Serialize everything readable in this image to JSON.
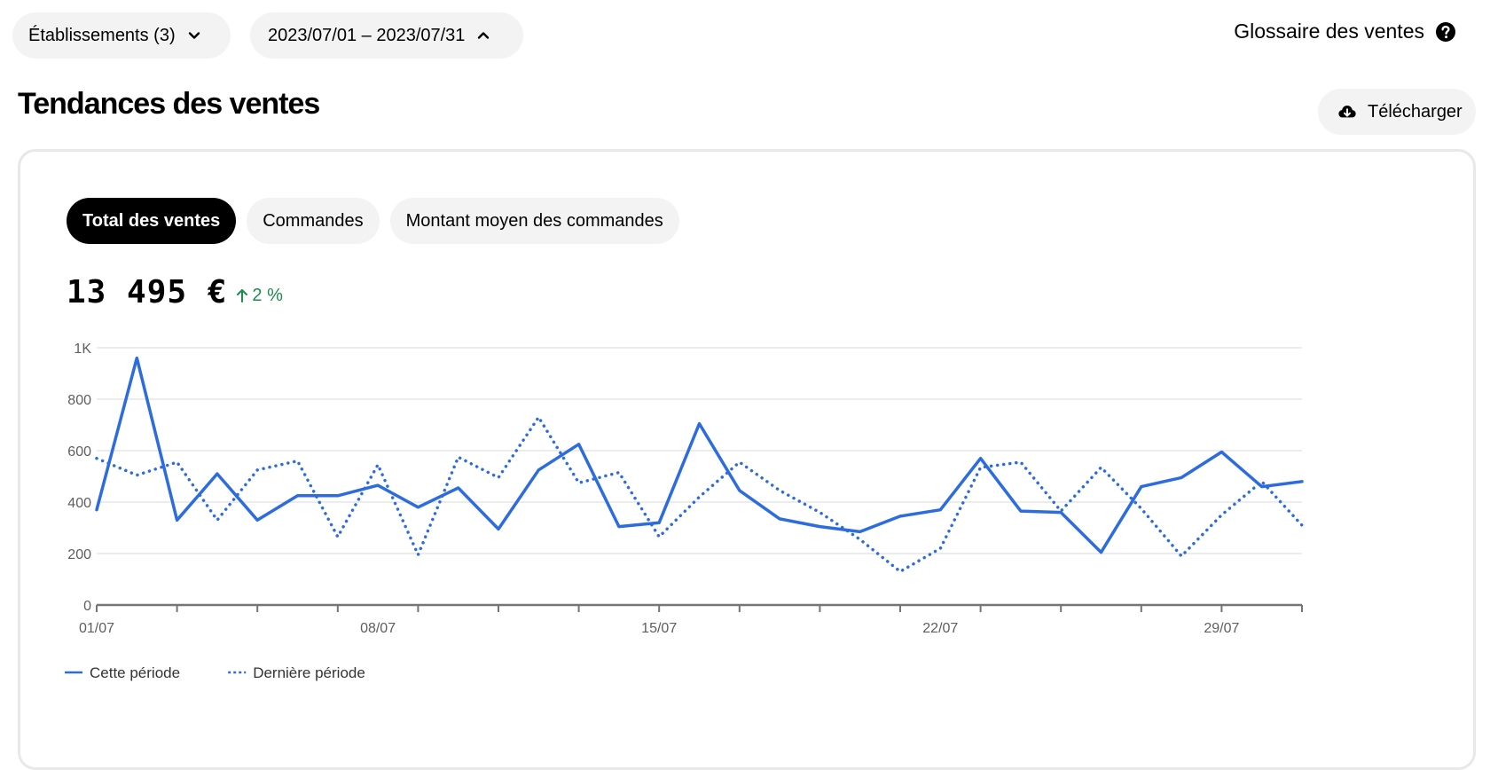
{
  "filters": {
    "establishments": "Établissements (3)",
    "dates": "2023/07/01 – 2023/07/31"
  },
  "glossary_label": "Glossaire des ventes",
  "title": "Tendances des ventes",
  "download_label": "Télécharger",
  "tabs": [
    {
      "label": "Total des ventes",
      "active": true
    },
    {
      "label": "Commandes",
      "active": false
    },
    {
      "label": "Montant moyen des commandes",
      "active": false
    }
  ],
  "total": {
    "value": "13 495  €",
    "delta": "2 %"
  },
  "colors": {
    "series": "#2d6cdf",
    "delta": "#1e8a4c"
  },
  "chart_data": {
    "type": "line",
    "ylim": [
      0,
      1000
    ],
    "yticks": [
      0,
      200,
      400,
      600,
      800,
      1000
    ],
    "ytick_labels": [
      "0",
      "200",
      "400",
      "600",
      "800",
      "1K"
    ],
    "x": [
      1,
      2,
      3,
      4,
      5,
      6,
      7,
      8,
      9,
      10,
      11,
      12,
      13,
      14,
      15,
      16,
      17,
      18,
      19,
      20,
      21,
      22,
      23,
      24,
      25,
      26,
      27,
      28,
      29,
      30,
      31
    ],
    "xticks": [
      1,
      8,
      15,
      22,
      29
    ],
    "xtick_labels": [
      "01/07",
      "08/07",
      "15/07",
      "22/07",
      "29/07"
    ],
    "grid": true,
    "legend_position": "bottom-left",
    "series": [
      {
        "name": "Cette période",
        "style": "solid",
        "values": [
          370,
          960,
          330,
          510,
          330,
          425,
          425,
          465,
          380,
          455,
          295,
          525,
          625,
          305,
          320,
          705,
          445,
          335,
          305,
          285,
          345,
          370,
          570,
          365,
          360,
          205,
          460,
          495,
          595,
          460,
          480
        ]
      },
      {
        "name": "Dernière période",
        "style": "dotted",
        "values": [
          570,
          505,
          555,
          330,
          525,
          560,
          265,
          545,
          195,
          575,
          495,
          730,
          475,
          515,
          265,
          420,
          555,
          445,
          360,
          255,
          130,
          220,
          535,
          555,
          365,
          535,
          375,
          190,
          350,
          480,
          310
        ]
      }
    ]
  }
}
